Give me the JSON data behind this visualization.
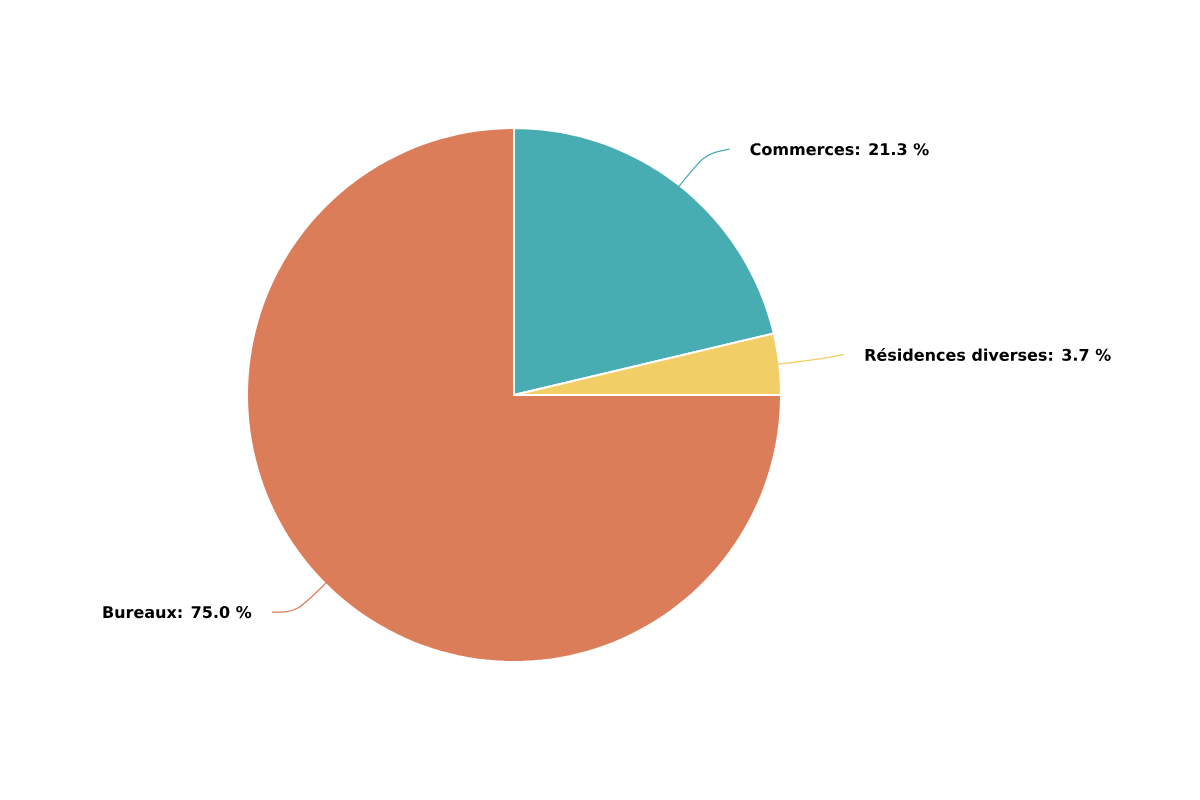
{
  "chart_data": {
    "type": "pie",
    "categories": [
      "Commerces",
      "Résidences diverses",
      "Bureaux"
    ],
    "values": [
      21.3,
      3.7,
      75.0
    ],
    "value_labels": [
      ": 21.3 %",
      ": 3.7 %",
      ": 75.0 %"
    ],
    "colors": [
      "#48acb3",
      "#f2cf66",
      "#dc7d59"
    ]
  }
}
